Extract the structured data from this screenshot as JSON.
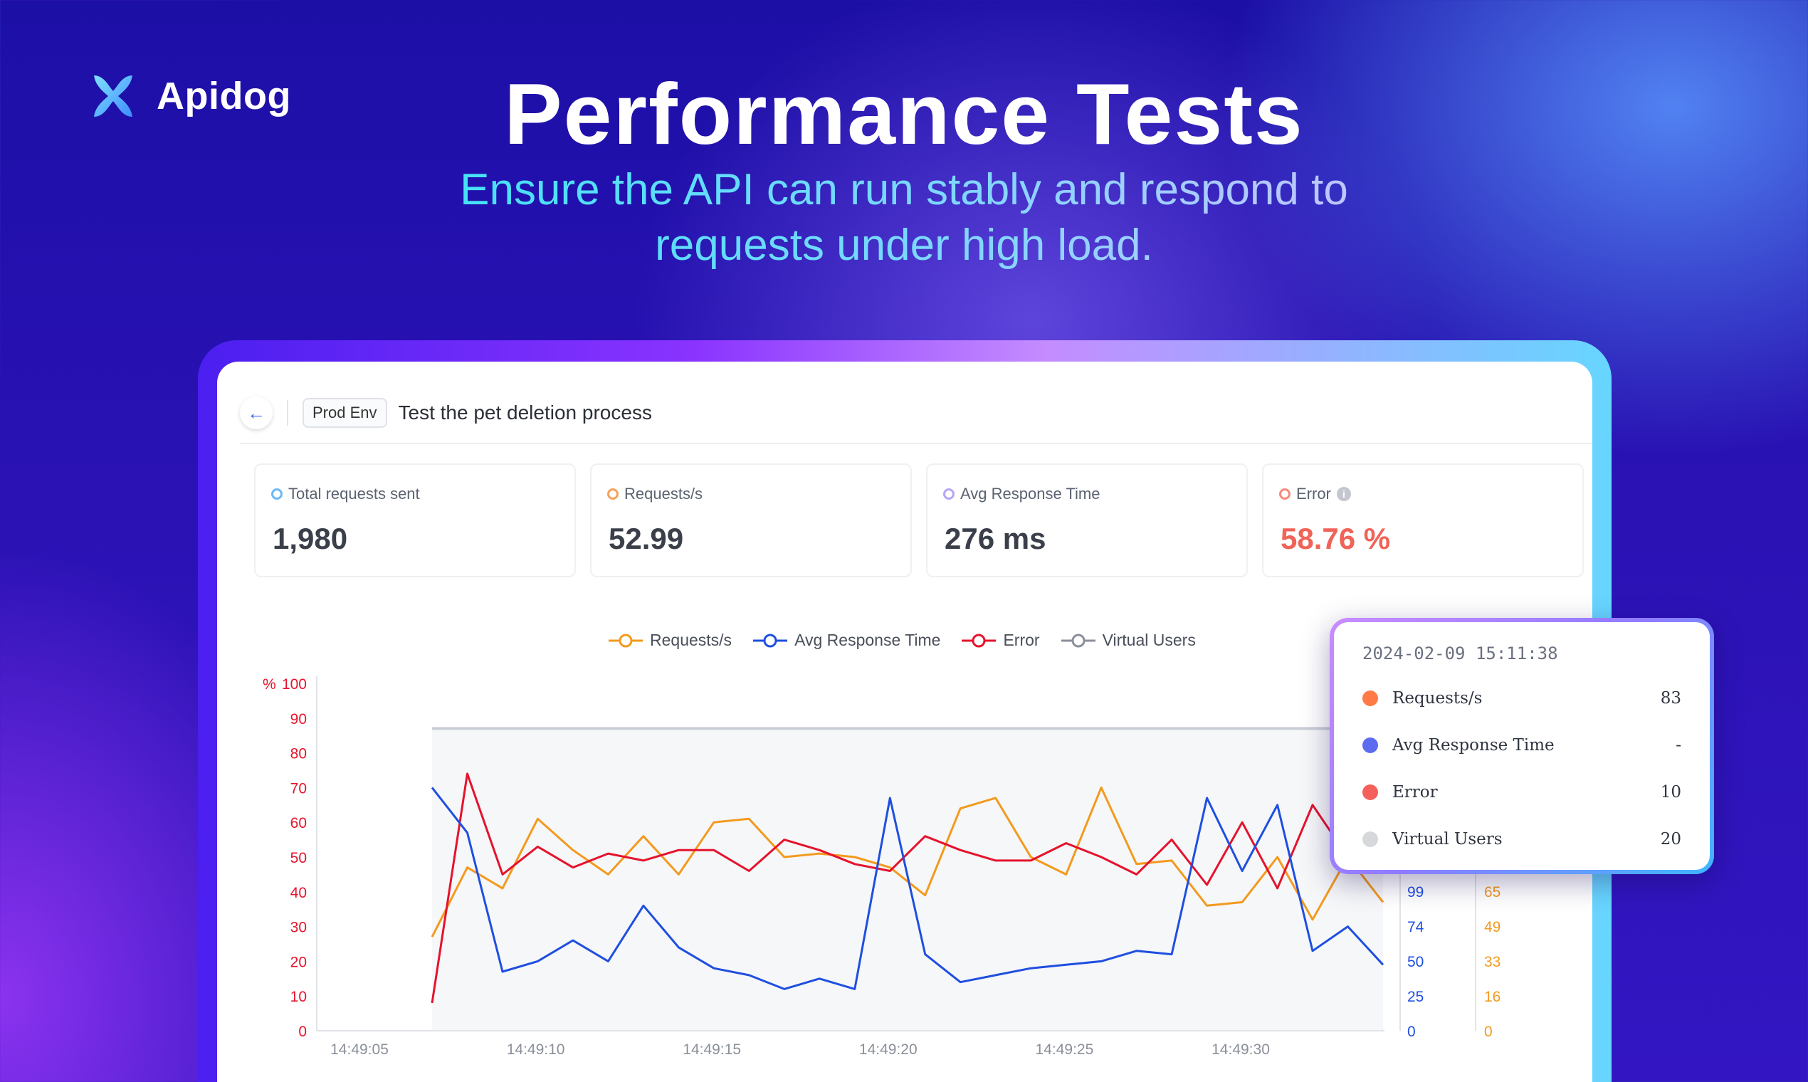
{
  "brand": {
    "name": "Apidog"
  },
  "hero": {
    "title": "Performance Tests",
    "subtitle_line1": "Ensure the API can run stably and respond to",
    "subtitle_line2": "requests under high load."
  },
  "header": {
    "env": "Prod Env",
    "title": "Test the pet deletion process"
  },
  "cards": [
    {
      "label": "Total requests sent",
      "value": "1,980",
      "dot_color": "#6cb9f5"
    },
    {
      "label": "Requests/s",
      "value": "52.99",
      "dot_color": "#f5a25c"
    },
    {
      "label": "Avg Response Time",
      "value": "276 ms",
      "dot_color": "#b6a6f5"
    },
    {
      "label": "Error",
      "value": "58.76 %",
      "dot_color": "#f58a7a"
    }
  ],
  "colors": {
    "requests": "#f39a1e",
    "avg_response": "#1f4fe0",
    "error": "#e5132c",
    "virtual_users": "#8a8f99",
    "error_value": "#f06358"
  },
  "chart_data": {
    "type": "line",
    "legend": [
      "Requests/s",
      "Avg Response Time",
      "Error",
      "Virtual Users"
    ],
    "x_ticks": [
      "14:49:05",
      "14:49:10",
      "14:49:15",
      "14:49:20",
      "14:49:25",
      "14:49:30"
    ],
    "y_left_unit": "%",
    "y_left_ticks": [
      "100",
      "90",
      "80",
      "70",
      "60",
      "50",
      "40",
      "30",
      "20",
      "10",
      "0"
    ],
    "y_right1_ticks": [
      "99",
      "74",
      "50",
      "25",
      "0"
    ],
    "y_right2_ticks": [
      "65",
      "49",
      "33",
      "16",
      "0"
    ],
    "ylim": [
      0,
      100
    ],
    "series": [
      {
        "name": "Requests/s",
        "values": [
          27,
          47,
          41,
          61,
          52,
          45,
          56,
          45,
          60,
          61,
          50,
          51,
          50,
          47,
          39,
          64,
          67,
          50,
          45,
          70,
          48,
          49,
          36,
          37,
          50,
          32,
          50,
          37
        ]
      },
      {
        "name": "Avg Response Time",
        "values": [
          70,
          57,
          17,
          20,
          26,
          20,
          36,
          24,
          18,
          16,
          12,
          15,
          12,
          67,
          22,
          14,
          16,
          18,
          19,
          20,
          23,
          22,
          67,
          46,
          65,
          23,
          30,
          19
        ]
      },
      {
        "name": "Error",
        "values": [
          8,
          74,
          45,
          53,
          47,
          51,
          49,
          52,
          52,
          46,
          55,
          52,
          48,
          46,
          56,
          52,
          49,
          49,
          54,
          50,
          45,
          55,
          42,
          60,
          41,
          65,
          50,
          63
        ]
      },
      {
        "name": "Virtual Users",
        "values": [
          87,
          87
        ]
      }
    ]
  },
  "tooltip": {
    "time": "2024-02-09 15:11:38",
    "rows": [
      {
        "name": "Requests/s",
        "value": "83",
        "color": "#ff7a45"
      },
      {
        "name": "Avg Response Time",
        "value": "-",
        "color": "#5b6cf0"
      },
      {
        "name": "Error",
        "value": "10",
        "color": "#f5605a"
      },
      {
        "name": "Virtual Users",
        "value": "20",
        "color": "#d6d8dc"
      }
    ]
  }
}
